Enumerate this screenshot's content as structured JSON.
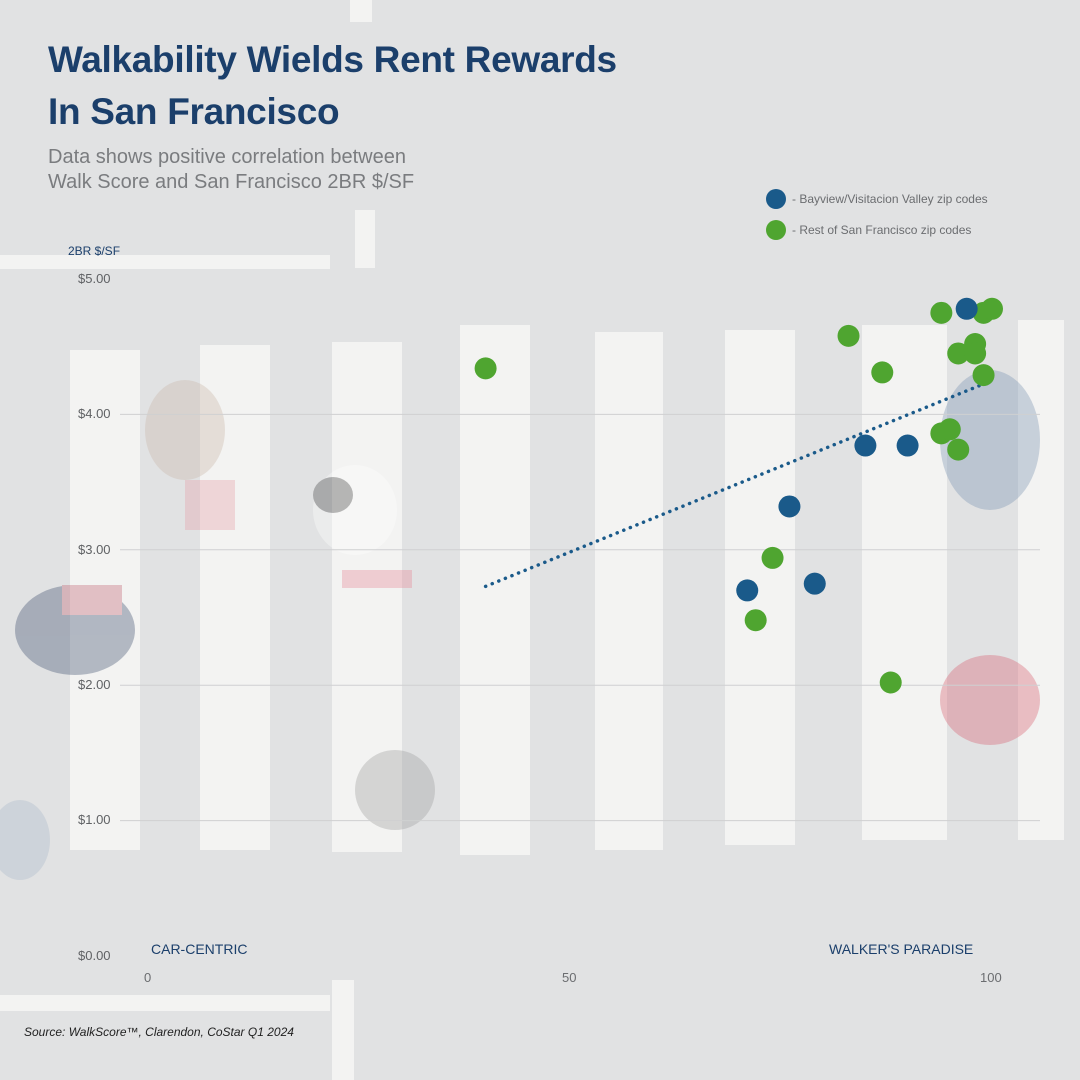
{
  "title_line1": "Walkability Wields Rent Rewards",
  "title_line2": "In San Francisco",
  "subtitle_line1": "Data shows positive correlation between",
  "subtitle_line2": "Walk Score and San Francisco 2BR $/SF",
  "legend": [
    {
      "label": "- Bayview/Visitacion Valley  zip codes",
      "color": "#1a5a8a"
    },
    {
      "label": "- Rest of San Francisco zip codes",
      "color": "#4fa530"
    }
  ],
  "y_axis_label": "2BR $/SF",
  "y_ticks": [
    "$5.00",
    "$4.00",
    "$3.00",
    "$2.00",
    "$1.00",
    "$0.00"
  ],
  "x_ticks": [
    "0",
    "50",
    "100"
  ],
  "x_category_left": "CAR-CENTRIC",
  "x_category_right": "WALKER'S PARADISE",
  "source": "Source: WalkScore™, Clarendon, CoStar Q1 2024",
  "colors": {
    "title": "#1b3f6b",
    "bayview": "#1a5a8a",
    "rest": "#4fa530",
    "trend": "#1a5a8a"
  },
  "chart_data": {
    "type": "scatter",
    "title": "Walkability Wields Rent Rewards In San Francisco",
    "subtitle": "Data shows positive correlation between Walk Score and San Francisco 2BR $/SF",
    "xlabel": "Walk Score (CAR-CENTRIC → WALKER'S PARADISE)",
    "ylabel": "2BR $/SF",
    "xlim": [
      0,
      100
    ],
    "ylim": [
      0,
      5
    ],
    "x_ticks": [
      0,
      50,
      100
    ],
    "y_ticks": [
      0,
      1,
      2,
      3,
      4,
      5
    ],
    "grid": "horizontal",
    "legend_position": "top-right",
    "series": [
      {
        "name": "Bayview/Visitacion Valley zip codes",
        "color": "#1a5a8a",
        "points": [
          [
            97,
            4.78
          ],
          [
            85,
            3.77
          ],
          [
            90,
            3.77
          ],
          [
            76,
            3.32
          ],
          [
            79,
            2.75
          ],
          [
            71,
            2.7
          ]
        ]
      },
      {
        "name": "Rest of San Francisco zip codes",
        "color": "#4fa530",
        "points": [
          [
            40,
            4.34
          ],
          [
            83,
            4.58
          ],
          [
            87,
            4.31
          ],
          [
            94,
            4.75
          ],
          [
            99,
            4.75
          ],
          [
            100,
            4.78
          ],
          [
            96,
            4.45
          ],
          [
            98,
            4.52
          ],
          [
            98,
            4.45
          ],
          [
            99,
            4.29
          ],
          [
            94,
            3.86
          ],
          [
            95,
            3.89
          ],
          [
            96,
            3.74
          ],
          [
            74,
            2.94
          ],
          [
            72,
            2.48
          ],
          [
            88,
            2.02
          ]
        ]
      }
    ],
    "trendline": {
      "style": "dotted",
      "color": "#1a5a8a",
      "from": [
        40,
        2.73
      ],
      "to": [
        100,
        4.25
      ]
    }
  }
}
